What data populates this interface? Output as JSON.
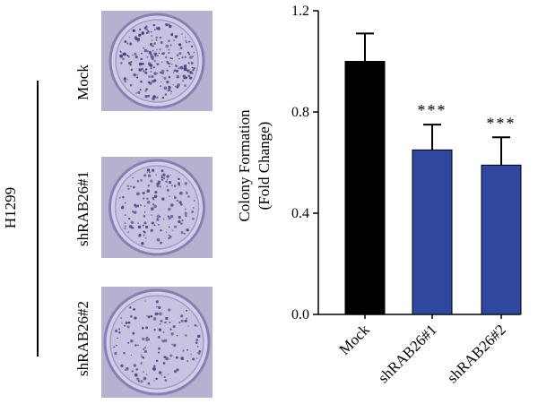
{
  "left_panel": {
    "cell_line": "H1299",
    "rows": [
      {
        "label": "Mock",
        "colony_density": 1.0
      },
      {
        "label": "shRAB26#1",
        "colony_density": 0.65
      },
      {
        "label": "shRAB26#2",
        "colony_density": 0.59
      }
    ]
  },
  "colors": {
    "mock_bar": "#000000",
    "knockdown_bar": "#2f479f",
    "dish_background": "#c9c3e2",
    "colony": "#4a3a7a"
  },
  "chart_data": {
    "type": "bar",
    "categories": [
      "Mock",
      "shRAB26#1",
      "shRAB26#2"
    ],
    "values": [
      1.0,
      0.65,
      0.59
    ],
    "error_bars": [
      0.11,
      0.1,
      0.11
    ],
    "annotations": [
      "",
      "***",
      "***"
    ],
    "bar_colors": [
      "#000000",
      "#2f479f",
      "#2f479f"
    ],
    "ylabel_lines": [
      "Colony Formation",
      "(Fold Change)"
    ],
    "ylim": [
      0.0,
      1.2
    ],
    "yticks": [
      0.0,
      0.4,
      0.8,
      1.2
    ],
    "ytick_labels": [
      "0.0",
      "0.4",
      "0.8",
      "1.2"
    ],
    "xlabel": "",
    "grid": false
  }
}
